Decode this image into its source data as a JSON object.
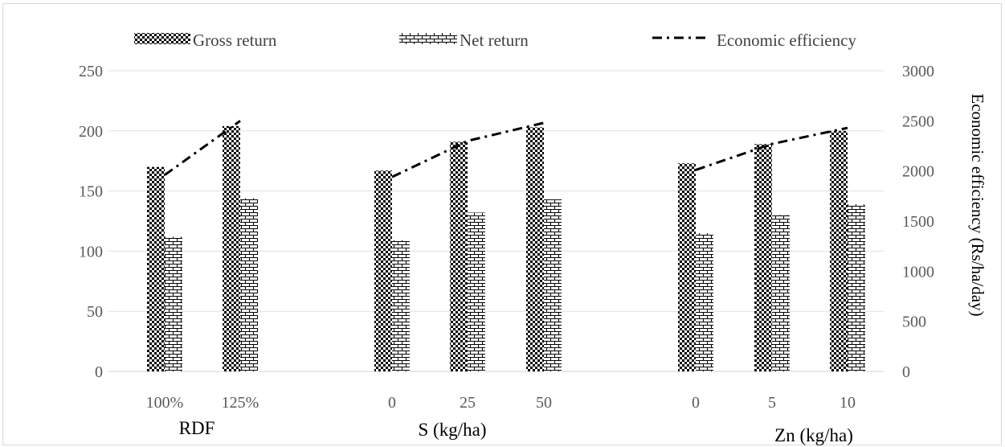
{
  "chart_data": {
    "type": "bar",
    "legend": {
      "position": "top",
      "items": [
        "Gross return",
        "Net return",
        "Economic efficiency"
      ]
    },
    "groups": [
      {
        "label": "RDF",
        "categories": [
          "100%",
          "125%"
        ]
      },
      {
        "label": "S (kg/ha)",
        "categories": [
          "0",
          "25",
          "50"
        ]
      },
      {
        "label": "Zn (kg/ha)",
        "categories": [
          "0",
          "5",
          "10"
        ]
      }
    ],
    "categories": [
      "100%",
      "125%",
      "0",
      "25",
      "50",
      "0",
      "5",
      "10"
    ],
    "series": [
      {
        "name": "Gross return",
        "type": "bar",
        "axis": "left",
        "pattern": "checker",
        "values": [
          170,
          204,
          167,
          191,
          203,
          173,
          189,
          200
        ]
      },
      {
        "name": "Net return",
        "type": "bar",
        "axis": "left",
        "pattern": "brick",
        "values": [
          112,
          144,
          109,
          132,
          143,
          115,
          130,
          139
        ]
      },
      {
        "name": "Economic efficiency",
        "type": "line",
        "axis": "right",
        "style": "dash-dot",
        "values": [
          1960,
          2500,
          1940,
          2300,
          2480,
          2010,
          2270,
          2430
        ]
      }
    ],
    "y_left": {
      "min": 0,
      "max": 250,
      "ticks": [
        0,
        50,
        100,
        150,
        200,
        250
      ]
    },
    "y_right": {
      "min": 0,
      "max": 3000,
      "ticks": [
        0,
        500,
        1000,
        1500,
        2000,
        2500,
        3000
      ],
      "label": "Economic efficiency (Rs/ha/day)"
    },
    "grid": true
  }
}
